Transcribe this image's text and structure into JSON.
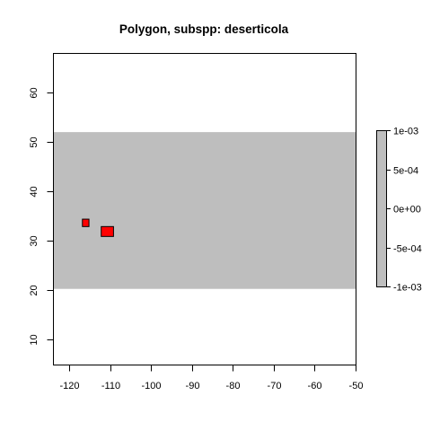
{
  "chart_data": {
    "type": "raster-map",
    "title": "Polygon, subspp: deserticola",
    "xlabel": "",
    "ylabel": "",
    "xlim": [
      -124,
      -50
    ],
    "ylim": [
      5,
      68
    ],
    "x_ticks": [
      -120,
      -110,
      -100,
      -90,
      -80,
      -70,
      -60,
      -50
    ],
    "y_ticks": [
      10,
      20,
      30,
      40,
      50,
      60
    ],
    "raster_band": {
      "xmin": -124,
      "xmax": -50,
      "ymin": 20.3,
      "ymax": 52.0,
      "color": "#bebebe"
    },
    "polygons": [
      {
        "xmin": -116.8,
        "xmax": -115.2,
        "ymin": 32.9,
        "ymax": 34.4,
        "color": "#ff0000"
      },
      {
        "xmin": -112.2,
        "xmax": -109.2,
        "ymin": 30.9,
        "ymax": 32.9,
        "color": "#ff0000"
      }
    ],
    "legend": {
      "position": "right",
      "color": "#bebebe",
      "labels": [
        "1e-03",
        "5e-04",
        "0e+00",
        "-5e-04",
        "-1e-03"
      ],
      "values": [
        0.001,
        0.0005,
        0,
        -0.0005,
        -0.001
      ]
    },
    "grid": false
  }
}
